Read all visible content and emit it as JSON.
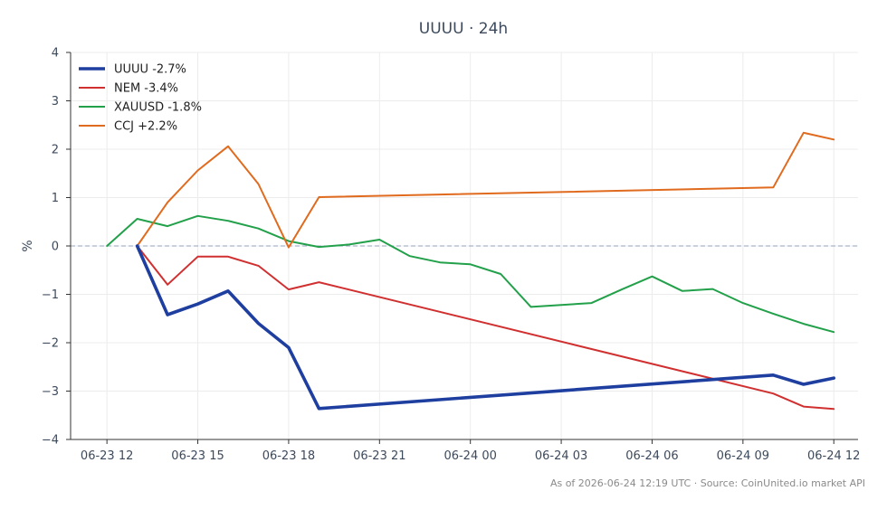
{
  "chart_data": {
    "type": "line",
    "title": "UUUU · 24h",
    "ylabel": "%",
    "xlabel": "",
    "ylim": [
      -4,
      4
    ],
    "yticks": [
      -4,
      -3,
      -2,
      -1,
      0,
      1,
      2,
      3,
      4
    ],
    "xlim": [
      "06-23 10:48",
      "06-24 12:48"
    ],
    "xticks": [
      {
        "t": "06-23 12:00",
        "label": "06-23 12"
      },
      {
        "t": "06-23 15:00",
        "label": "06-23 15"
      },
      {
        "t": "06-23 18:00",
        "label": "06-23 18"
      },
      {
        "t": "06-23 21:00",
        "label": "06-23 21"
      },
      {
        "t": "06-24 00:00",
        "label": "06-24 00"
      },
      {
        "t": "06-24 03:00",
        "label": "06-24 03"
      },
      {
        "t": "06-24 06:00",
        "label": "06-24 06"
      },
      {
        "t": "06-24 09:00",
        "label": "06-24 09"
      },
      {
        "t": "06-24 12:00",
        "label": "06-24 12"
      }
    ],
    "grid": true,
    "zero_line": true,
    "legend_position": "top-left",
    "series": [
      {
        "name": "UUUU -2.7%",
        "color": "#1f3fa0",
        "emphasis": true,
        "points": [
          {
            "t": "06-23 13:00",
            "y": 0.0
          },
          {
            "t": "06-23 14:00",
            "y": -1.42
          },
          {
            "t": "06-23 15:00",
            "y": -1.2
          },
          {
            "t": "06-23 16:00",
            "y": -0.93
          },
          {
            "t": "06-23 17:00",
            "y": -1.6
          },
          {
            "t": "06-23 18:00",
            "y": -2.1
          },
          {
            "t": "06-23 19:00",
            "y": -3.36
          },
          {
            "t": "06-24 10:00",
            "y": -2.67
          },
          {
            "t": "06-24 11:00",
            "y": -2.86
          },
          {
            "t": "06-24 12:00",
            "y": -2.73
          }
        ]
      },
      {
        "name": "NEM -3.4%",
        "color": "#d03030",
        "points": [
          {
            "t": "06-23 13:00",
            "y": 0.0
          },
          {
            "t": "06-23 14:00",
            "y": -0.8
          },
          {
            "t": "06-23 15:00",
            "y": -0.22
          },
          {
            "t": "06-23 16:00",
            "y": -0.22
          },
          {
            "t": "06-23 17:00",
            "y": -0.41
          },
          {
            "t": "06-23 18:00",
            "y": -0.9
          },
          {
            "t": "06-23 19:00",
            "y": -0.75
          },
          {
            "t": "06-24 10:00",
            "y": -3.05
          },
          {
            "t": "06-24 11:00",
            "y": -3.32
          },
          {
            "t": "06-24 12:00",
            "y": -3.37
          }
        ]
      },
      {
        "name": "XAUUSD -1.8%",
        "color": "#22a04a",
        "points": [
          {
            "t": "06-23 12:00",
            "y": 0.0
          },
          {
            "t": "06-23 13:00",
            "y": 0.56
          },
          {
            "t": "06-23 14:00",
            "y": 0.41
          },
          {
            "t": "06-23 15:00",
            "y": 0.62
          },
          {
            "t": "06-23 16:00",
            "y": 0.52
          },
          {
            "t": "06-23 17:00",
            "y": 0.36
          },
          {
            "t": "06-23 18:00",
            "y": 0.1
          },
          {
            "t": "06-23 19:00",
            "y": -0.02
          },
          {
            "t": "06-23 20:00",
            "y": 0.03
          },
          {
            "t": "06-23 21:00",
            "y": 0.13
          },
          {
            "t": "06-23 22:00",
            "y": -0.21
          },
          {
            "t": "06-23 23:00",
            "y": -0.34
          },
          {
            "t": "06-24 00:00",
            "y": -0.38
          },
          {
            "t": "06-24 01:00",
            "y": -0.58
          },
          {
            "t": "06-24 02:00",
            "y": -1.26
          },
          {
            "t": "06-24 04:00",
            "y": -1.18
          },
          {
            "t": "06-24 05:00",
            "y": -0.9
          },
          {
            "t": "06-24 06:00",
            "y": -0.63
          },
          {
            "t": "06-24 07:00",
            "y": -0.93
          },
          {
            "t": "06-24 08:00",
            "y": -0.89
          },
          {
            "t": "06-24 09:00",
            "y": -1.18
          },
          {
            "t": "06-24 10:00",
            "y": -1.4
          },
          {
            "t": "06-24 11:00",
            "y": -1.61
          },
          {
            "t": "06-24 12:00",
            "y": -1.78
          }
        ]
      },
      {
        "name": "CCJ +2.2%",
        "color": "#e06a1e",
        "points": [
          {
            "t": "06-23 13:00",
            "y": 0.0
          },
          {
            "t": "06-23 14:00",
            "y": 0.9
          },
          {
            "t": "06-23 15:00",
            "y": 1.56
          },
          {
            "t": "06-23 16:00",
            "y": 2.06
          },
          {
            "t": "06-23 17:00",
            "y": 1.28
          },
          {
            "t": "06-23 18:00",
            "y": -0.03
          },
          {
            "t": "06-23 19:00",
            "y": 1.01
          },
          {
            "t": "06-24 10:00",
            "y": 1.21
          },
          {
            "t": "06-24 11:00",
            "y": 2.34
          },
          {
            "t": "06-24 12:00",
            "y": 2.2
          }
        ]
      }
    ]
  },
  "footer": "As of 2026-06-24 12:19 UTC · Source: CoinUnited.io market API"
}
